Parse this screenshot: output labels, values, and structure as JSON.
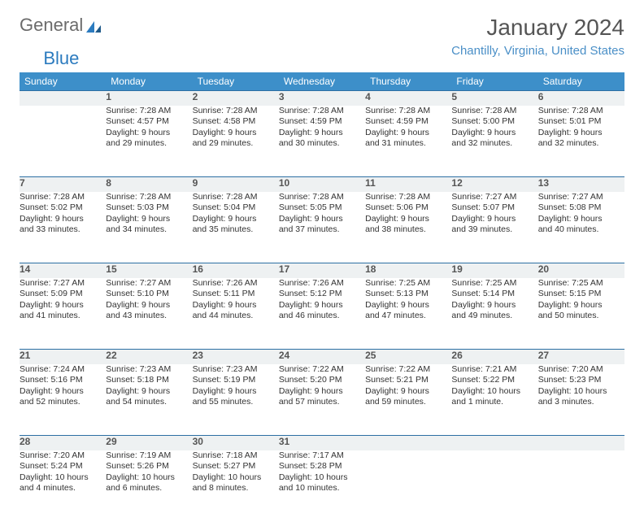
{
  "logo": {
    "word1": "General",
    "word2": "Blue"
  },
  "title": "January 2024",
  "location": "Chantilly, Virginia, United States",
  "colors": {
    "header_bg": "#3d8fc9",
    "header_text": "#ffffff",
    "daynum_bg": "#eef1f2",
    "row_border": "#2c6fa3",
    "location_color": "#4a8fc7",
    "logo_gray": "#6b6b6b",
    "logo_blue": "#2c7bbf"
  },
  "weekdays": [
    "Sunday",
    "Monday",
    "Tuesday",
    "Wednesday",
    "Thursday",
    "Friday",
    "Saturday"
  ],
  "weeks": [
    {
      "nums": [
        "",
        "1",
        "2",
        "3",
        "4",
        "5",
        "6"
      ],
      "sunrise": [
        "",
        "Sunrise: 7:28 AM",
        "Sunrise: 7:28 AM",
        "Sunrise: 7:28 AM",
        "Sunrise: 7:28 AM",
        "Sunrise: 7:28 AM",
        "Sunrise: 7:28 AM"
      ],
      "sunset": [
        "",
        "Sunset: 4:57 PM",
        "Sunset: 4:58 PM",
        "Sunset: 4:59 PM",
        "Sunset: 4:59 PM",
        "Sunset: 5:00 PM",
        "Sunset: 5:01 PM"
      ],
      "day1": [
        "",
        "Daylight: 9 hours",
        "Daylight: 9 hours",
        "Daylight: 9 hours",
        "Daylight: 9 hours",
        "Daylight: 9 hours",
        "Daylight: 9 hours"
      ],
      "day2": [
        "",
        "and 29 minutes.",
        "and 29 minutes.",
        "and 30 minutes.",
        "and 31 minutes.",
        "and 32 minutes.",
        "and 32 minutes."
      ]
    },
    {
      "nums": [
        "7",
        "8",
        "9",
        "10",
        "11",
        "12",
        "13"
      ],
      "sunrise": [
        "Sunrise: 7:28 AM",
        "Sunrise: 7:28 AM",
        "Sunrise: 7:28 AM",
        "Sunrise: 7:28 AM",
        "Sunrise: 7:28 AM",
        "Sunrise: 7:27 AM",
        "Sunrise: 7:27 AM"
      ],
      "sunset": [
        "Sunset: 5:02 PM",
        "Sunset: 5:03 PM",
        "Sunset: 5:04 PM",
        "Sunset: 5:05 PM",
        "Sunset: 5:06 PM",
        "Sunset: 5:07 PM",
        "Sunset: 5:08 PM"
      ],
      "day1": [
        "Daylight: 9 hours",
        "Daylight: 9 hours",
        "Daylight: 9 hours",
        "Daylight: 9 hours",
        "Daylight: 9 hours",
        "Daylight: 9 hours",
        "Daylight: 9 hours"
      ],
      "day2": [
        "and 33 minutes.",
        "and 34 minutes.",
        "and 35 minutes.",
        "and 37 minutes.",
        "and 38 minutes.",
        "and 39 minutes.",
        "and 40 minutes."
      ]
    },
    {
      "nums": [
        "14",
        "15",
        "16",
        "17",
        "18",
        "19",
        "20"
      ],
      "sunrise": [
        "Sunrise: 7:27 AM",
        "Sunrise: 7:27 AM",
        "Sunrise: 7:26 AM",
        "Sunrise: 7:26 AM",
        "Sunrise: 7:25 AM",
        "Sunrise: 7:25 AM",
        "Sunrise: 7:25 AM"
      ],
      "sunset": [
        "Sunset: 5:09 PM",
        "Sunset: 5:10 PM",
        "Sunset: 5:11 PM",
        "Sunset: 5:12 PM",
        "Sunset: 5:13 PM",
        "Sunset: 5:14 PM",
        "Sunset: 5:15 PM"
      ],
      "day1": [
        "Daylight: 9 hours",
        "Daylight: 9 hours",
        "Daylight: 9 hours",
        "Daylight: 9 hours",
        "Daylight: 9 hours",
        "Daylight: 9 hours",
        "Daylight: 9 hours"
      ],
      "day2": [
        "and 41 minutes.",
        "and 43 minutes.",
        "and 44 minutes.",
        "and 46 minutes.",
        "and 47 minutes.",
        "and 49 minutes.",
        "and 50 minutes."
      ]
    },
    {
      "nums": [
        "21",
        "22",
        "23",
        "24",
        "25",
        "26",
        "27"
      ],
      "sunrise": [
        "Sunrise: 7:24 AM",
        "Sunrise: 7:23 AM",
        "Sunrise: 7:23 AM",
        "Sunrise: 7:22 AM",
        "Sunrise: 7:22 AM",
        "Sunrise: 7:21 AM",
        "Sunrise: 7:20 AM"
      ],
      "sunset": [
        "Sunset: 5:16 PM",
        "Sunset: 5:18 PM",
        "Sunset: 5:19 PM",
        "Sunset: 5:20 PM",
        "Sunset: 5:21 PM",
        "Sunset: 5:22 PM",
        "Sunset: 5:23 PM"
      ],
      "day1": [
        "Daylight: 9 hours",
        "Daylight: 9 hours",
        "Daylight: 9 hours",
        "Daylight: 9 hours",
        "Daylight: 9 hours",
        "Daylight: 10 hours",
        "Daylight: 10 hours"
      ],
      "day2": [
        "and 52 minutes.",
        "and 54 minutes.",
        "and 55 minutes.",
        "and 57 minutes.",
        "and 59 minutes.",
        "and 1 minute.",
        "and 3 minutes."
      ]
    },
    {
      "nums": [
        "28",
        "29",
        "30",
        "31",
        "",
        "",
        ""
      ],
      "sunrise": [
        "Sunrise: 7:20 AM",
        "Sunrise: 7:19 AM",
        "Sunrise: 7:18 AM",
        "Sunrise: 7:17 AM",
        "",
        "",
        ""
      ],
      "sunset": [
        "Sunset: 5:24 PM",
        "Sunset: 5:26 PM",
        "Sunset: 5:27 PM",
        "Sunset: 5:28 PM",
        "",
        "",
        ""
      ],
      "day1": [
        "Daylight: 10 hours",
        "Daylight: 10 hours",
        "Daylight: 10 hours",
        "Daylight: 10 hours",
        "",
        "",
        ""
      ],
      "day2": [
        "and 4 minutes.",
        "and 6 minutes.",
        "and 8 minutes.",
        "and 10 minutes.",
        "",
        "",
        ""
      ]
    }
  ]
}
